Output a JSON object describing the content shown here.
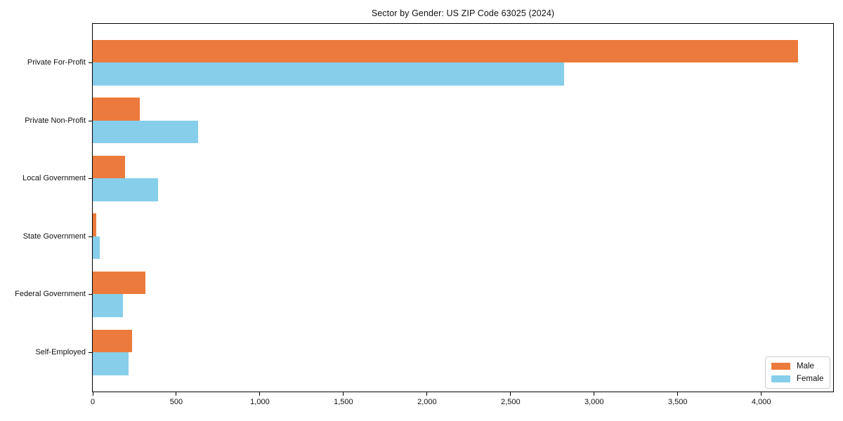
{
  "chart_data": {
    "type": "bar",
    "orientation": "horizontal",
    "title": "Sector by Gender: US ZIP Code 63025 (2024)",
    "categories": [
      "Private For-Profit",
      "Private Non-Profit",
      "Local Government",
      "State Government",
      "Federal Government",
      "Self-Employed"
    ],
    "series": [
      {
        "name": "Male",
        "color": "#EB7A3C",
        "values": [
          4220,
          280,
          195,
          20,
          315,
          235
        ]
      },
      {
        "name": "Female",
        "color": "#87CEEB",
        "values": [
          2820,
          630,
          390,
          40,
          180,
          215
        ]
      }
    ],
    "xlabel": "",
    "ylabel": "",
    "xlim": [
      0,
      4430
    ],
    "xticks": [
      0,
      500,
      1000,
      1500,
      2000,
      2500,
      3000,
      3500,
      4000
    ],
    "xtick_labels": [
      "0",
      "500",
      "1,000",
      "1,500",
      "2,000",
      "2,500",
      "3,000",
      "3,500",
      "4,000"
    ],
    "grid": false,
    "legend": {
      "position": "lower-right"
    }
  }
}
